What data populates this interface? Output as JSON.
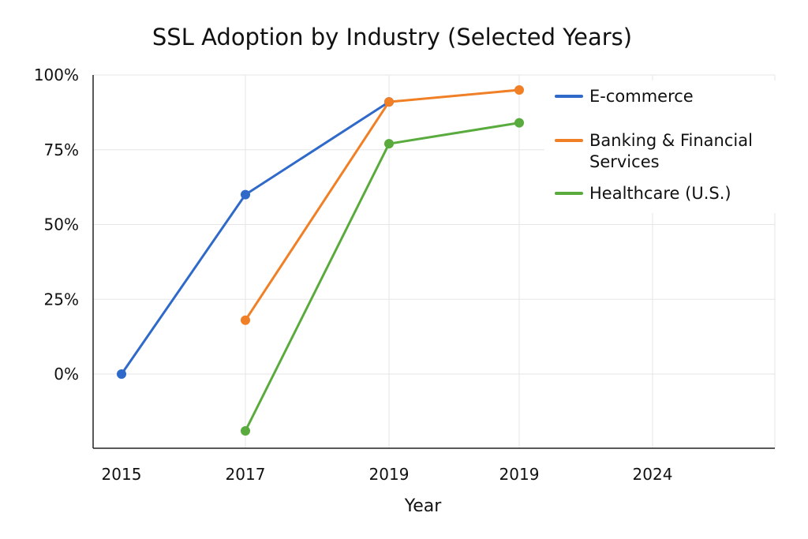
{
  "chart_data": {
    "type": "line",
    "title": "SSL Adoption by Industry (Selected Years)",
    "xlabel": "Year",
    "ylabel": "",
    "categories": [
      "2015",
      "2017",
      "2019",
      "2019",
      "2024"
    ],
    "y_ticks": [
      "0%",
      "25%",
      "50%",
      "75%",
      "100%"
    ],
    "ylim": [
      -25,
      100
    ],
    "grid": true,
    "legend_position": "top-right",
    "series": [
      {
        "name": "E-commerce",
        "color": "#2f69c9",
        "values": [
          0,
          60,
          91,
          null,
          null
        ]
      },
      {
        "name": "Banking & Financial Services",
        "color": "#f07f25",
        "values": [
          null,
          18,
          91,
          95,
          null
        ]
      },
      {
        "name": "Healthcare (U.S.)",
        "color": "#5aab3e",
        "values": [
          null,
          -19,
          77,
          84,
          null
        ]
      }
    ]
  }
}
